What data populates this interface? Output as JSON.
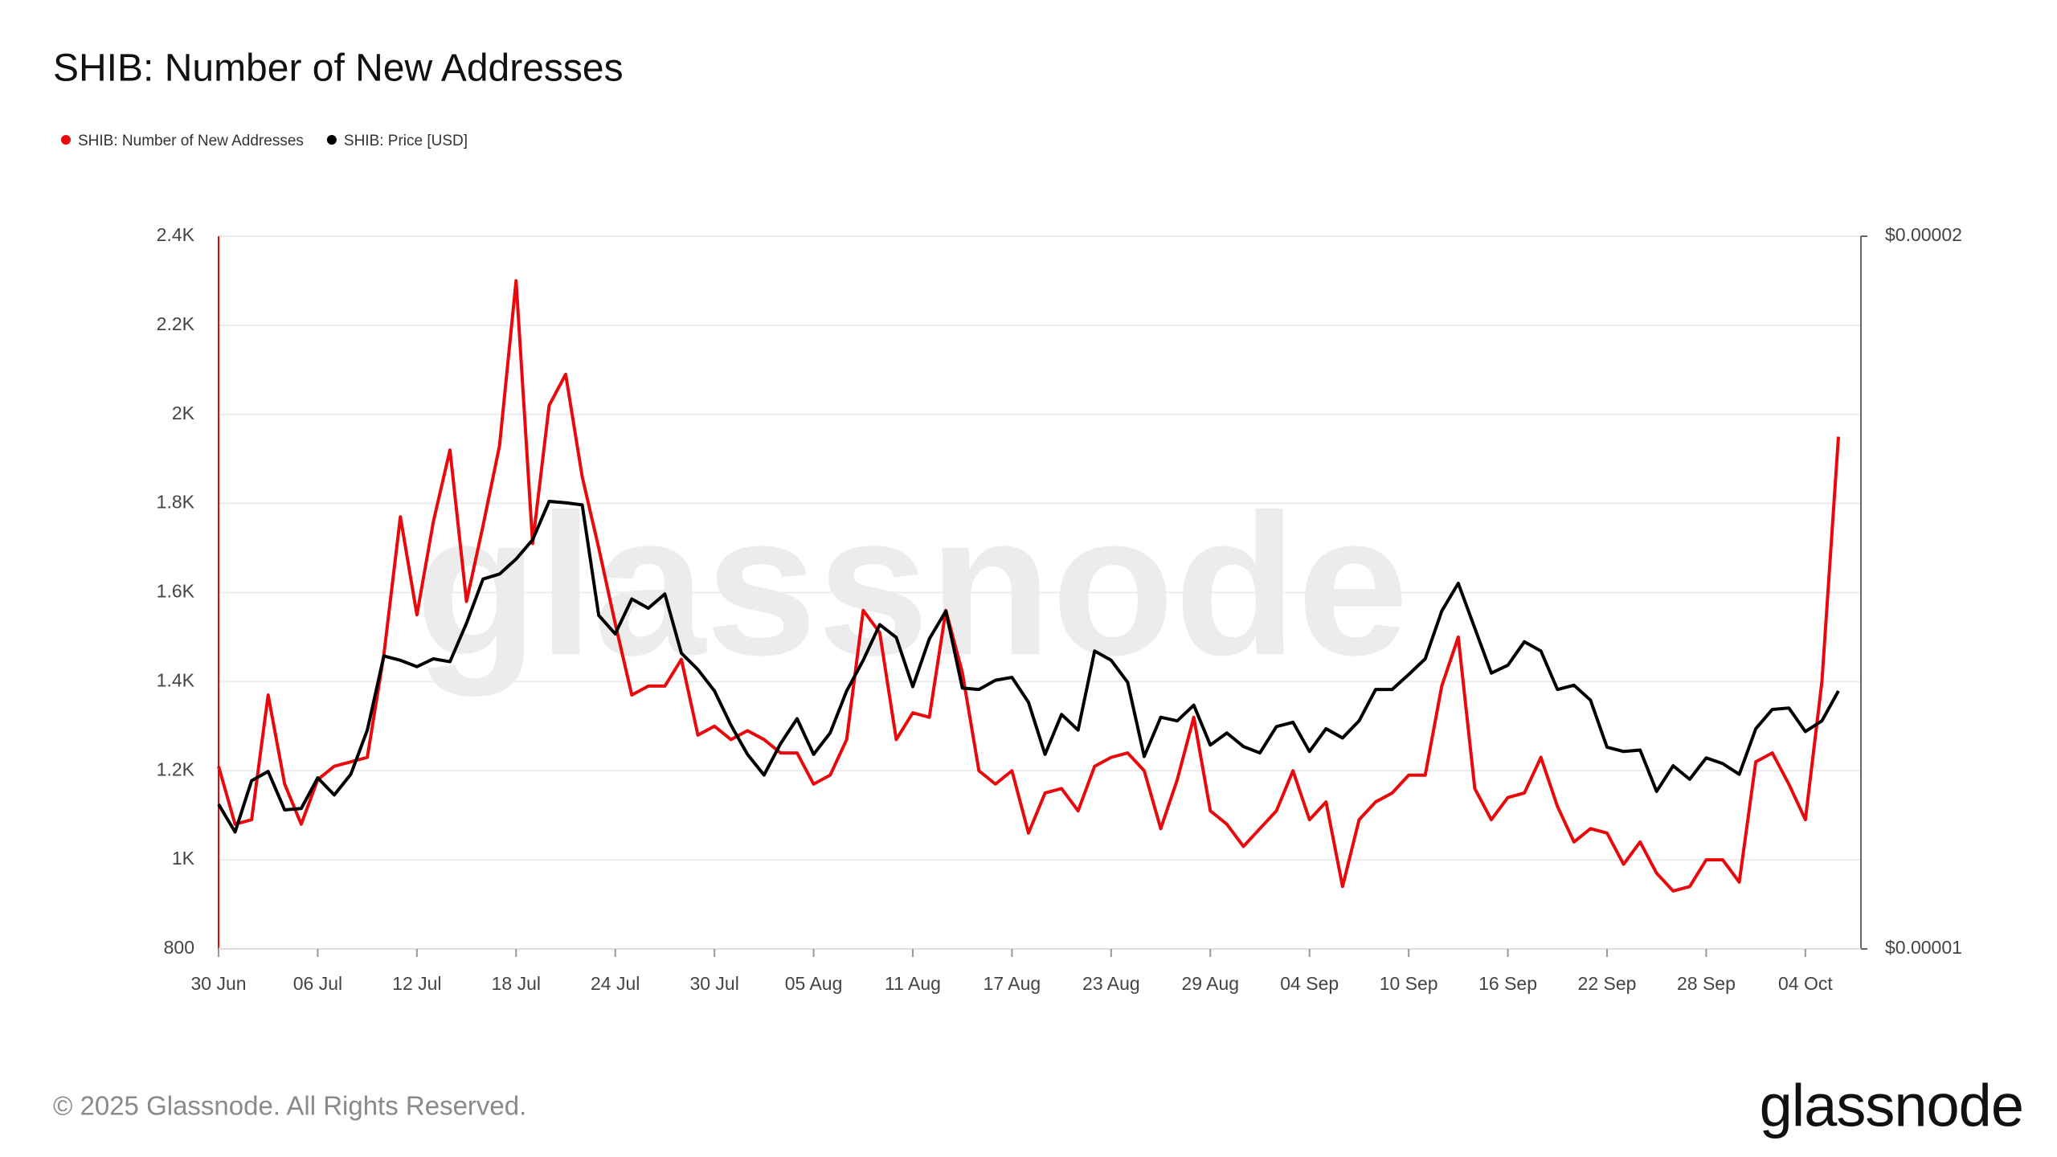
{
  "chart_data": {
    "type": "line",
    "title": "SHIB: Number of New Addresses",
    "categories": [
      "30 Jun",
      null,
      null,
      null,
      null,
      null,
      "06 Jul",
      null,
      null,
      null,
      null,
      null,
      "12 Jul",
      null,
      null,
      null,
      null,
      null,
      "18 Jul",
      null,
      null,
      null,
      null,
      null,
      "24 Jul",
      null,
      null,
      null,
      null,
      null,
      "30 Jul",
      null,
      null,
      null,
      null,
      null,
      "05 Aug",
      null,
      null,
      null,
      null,
      null,
      "11 Aug",
      null,
      null,
      null,
      null,
      null,
      "17 Aug",
      null,
      null,
      null,
      null,
      null,
      "23 Aug",
      null,
      null,
      null,
      null,
      null,
      "29 Aug",
      null,
      null,
      null,
      null,
      null,
      "04 Sep",
      null,
      null,
      null,
      null,
      null,
      "10 Sep",
      null,
      null,
      null,
      null,
      null,
      "16 Sep",
      null,
      null,
      null,
      null,
      null,
      "22 Sep",
      null,
      null,
      null,
      null,
      null,
      "28 Sep",
      null,
      null,
      null,
      null,
      null,
      "04 Oct",
      null,
      null
    ],
    "series": [
      {
        "name": "SHIB: Number of New Addresses",
        "color": "#e8090c",
        "axis": "y",
        "values": [
          1210,
          1080,
          1090,
          1370,
          1170,
          1080,
          1180,
          1210,
          1220,
          1230,
          1460,
          1770,
          1550,
          1760,
          1920,
          1580,
          1750,
          1930,
          2300,
          1710,
          2020,
          2090,
          1860,
          1700,
          1530,
          1370,
          1390,
          1390,
          1450,
          1280,
          1300,
          1270,
          1290,
          1270,
          1240,
          1240,
          1170,
          1190,
          1270,
          1560,
          1510,
          1270,
          1330,
          1320,
          1560,
          1420,
          1200,
          1170,
          1200,
          1060,
          1150,
          1160,
          1110,
          1210,
          1230,
          1240,
          1200,
          1070,
          1180,
          1320,
          1110,
          1080,
          1030,
          1070,
          1110,
          1200,
          1090,
          1130,
          940,
          1090,
          1130,
          1150,
          1190,
          1190,
          1390,
          1500,
          1160,
          1090,
          1140,
          1150,
          1230,
          1120,
          1040,
          1070,
          1060,
          990,
          1040,
          970,
          930,
          940,
          1000,
          1000,
          950,
          1220,
          1240,
          1170,
          1090,
          1400,
          1950
        ]
      },
      {
        "name": "SHIB: Price [USD]",
        "color": "#000000",
        "axis": "y2",
        "values": [
          1.203e-05,
          1.164e-05,
          1.236e-05,
          1.249e-05,
          1.195e-05,
          1.197e-05,
          1.24e-05,
          1.216e-05,
          1.245e-05,
          1.307e-05,
          1.411e-05,
          1.405e-05,
          1.396e-05,
          1.407e-05,
          1.403e-05,
          1.457e-05,
          1.519e-05,
          1.526e-05,
          1.547e-05,
          1.574e-05,
          1.628e-05,
          1.626e-05,
          1.623e-05,
          1.468e-05,
          1.442e-05,
          1.491e-05,
          1.478e-05,
          1.498e-05,
          1.415e-05,
          1.392e-05,
          1.362e-05,
          1.314e-05,
          1.273e-05,
          1.244e-05,
          1.288e-05,
          1.323e-05,
          1.273e-05,
          1.303e-05,
          1.362e-05,
          1.405e-05,
          1.455e-05,
          1.437e-05,
          1.368e-05,
          1.435e-05,
          1.474e-05,
          1.366e-05,
          1.364e-05,
          1.377e-05,
          1.381e-05,
          1.346e-05,
          1.273e-05,
          1.329e-05,
          1.307e-05,
          1.418e-05,
          1.405e-05,
          1.374e-05,
          1.27e-05,
          1.325e-05,
          1.32e-05,
          1.342e-05,
          1.286e-05,
          1.303e-05,
          1.284e-05,
          1.275e-05,
          1.312e-05,
          1.318e-05,
          1.277e-05,
          1.309e-05,
          1.296e-05,
          1.32e-05,
          1.364e-05,
          1.364e-05,
          1.385e-05,
          1.407e-05,
          1.474e-05,
          1.513e-05,
          1.45e-05,
          1.387e-05,
          1.398e-05,
          1.431e-05,
          1.418e-05,
          1.364e-05,
          1.37e-05,
          1.349e-05,
          1.283e-05,
          1.277e-05,
          1.279e-05,
          1.221e-05,
          1.257e-05,
          1.238e-05,
          1.268e-05,
          1.26e-05,
          1.245e-05,
          1.309e-05,
          1.336e-05,
          1.338e-05,
          1.305e-05,
          1.32e-05,
          1.362e-05
        ]
      }
    ],
    "ylim": [
      800,
      2400
    ],
    "yticks": [
      800,
      {
        "value": 1000,
        "label": "1K"
      },
      {
        "value": 1200,
        "label": "1.2K"
      },
      {
        "value": 1400,
        "label": "1.4K"
      },
      {
        "value": 1600,
        "label": "1.6K"
      },
      {
        "value": 1800,
        "label": "1.8K"
      },
      {
        "value": 2000,
        "label": "2K"
      },
      {
        "value": 2200,
        "label": "2.2K"
      },
      {
        "value": 2400,
        "label": "2.4K"
      }
    ],
    "y2lim": [
      1e-05,
      2e-05
    ],
    "y2ticks": [
      {
        "value": 1e-05,
        "label": "$0.00001"
      },
      {
        "value": 2e-05,
        "label": "$0.00002"
      }
    ],
    "grid": true,
    "legend": "top-left"
  },
  "watermark": "glassnode",
  "footer": "© 2025 Glassnode. All Rights Reserved.",
  "logo": "glassnode"
}
